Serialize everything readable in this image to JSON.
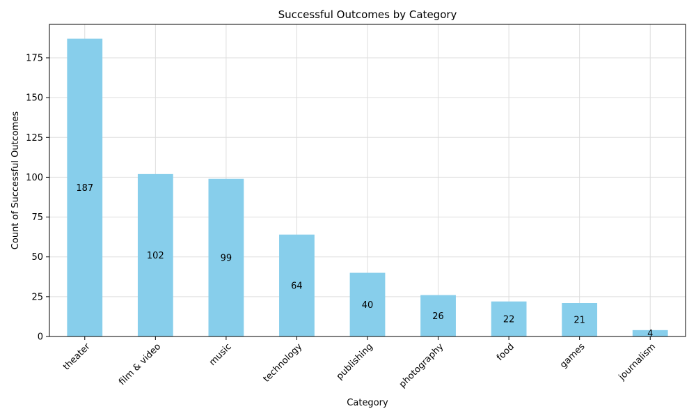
{
  "chart_data": {
    "type": "bar",
    "title": "Successful Outcomes by Category",
    "xlabel": "Category",
    "ylabel": "Count of Successful Outcomes",
    "categories": [
      "theater",
      "film & video",
      "music",
      "technology",
      "publishing",
      "photography",
      "food",
      "games",
      "journalism"
    ],
    "values": [
      187,
      102,
      99,
      64,
      40,
      26,
      22,
      21,
      4
    ],
    "ylim": [
      0,
      196
    ],
    "yticks": [
      0,
      25,
      50,
      75,
      100,
      125,
      150,
      175
    ],
    "grid": true,
    "bar_color": "#87ceeb",
    "xtick_rotation": 45
  }
}
